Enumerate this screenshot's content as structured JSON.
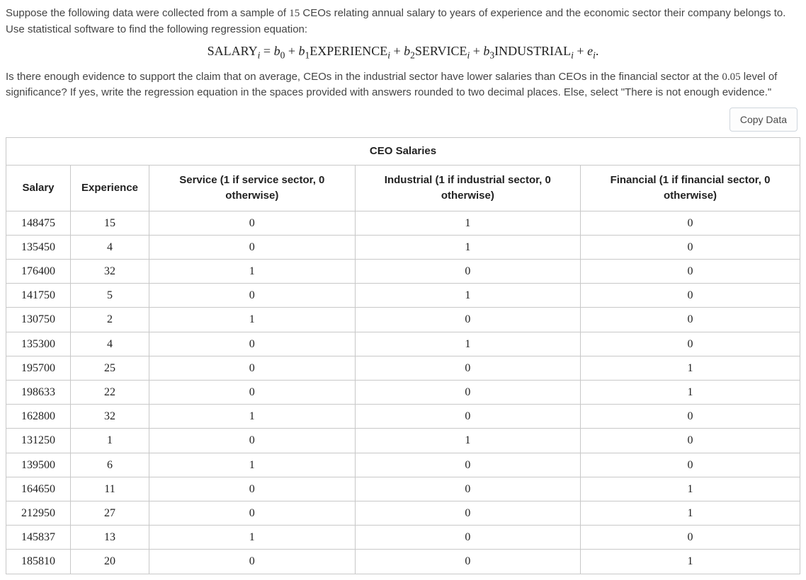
{
  "intro": {
    "p1_a": "Suppose the following data were collected from a sample of ",
    "p1_count": "15",
    "p1_b": " CEOs relating annual salary to years of experience and the economic sector their company belongs to. Use statistical software to find the following regression equation:",
    "p2_a": "Is there enough evidence to support the claim that on average, CEOs in the industrial sector have lower salaries than CEOs in the financial sector at the ",
    "p2_alpha": "0.05",
    "p2_b": " level of significance? If yes, write the regression equation in the spaces provided with answers rounded to two decimal places. Else, select \"There is not enough evidence.\""
  },
  "equation_html": "SALARY<sub><i>i</i></sub> = <i>b</i><sub>0</sub> + <i>b</i><sub>1</sub>EXPERIENCE<sub><i>i</i></sub> + <i>b</i><sub>2</sub>SERVICE<sub><i>i</i></sub> + <i>b</i><sub>3</sub>INDUSTRIAL<sub><i>i</i></sub> + <i>e</i><sub><i>i</i></sub>.",
  "buttons": {
    "copy": "Copy Data"
  },
  "table": {
    "title": "CEO Salaries",
    "columns": [
      "Salary",
      "Experience",
      "Service (1 if service sector, 0 otherwise)",
      "Industrial (1 if industrial sector, 0 otherwise)",
      "Financial (1 if financial sector, 0 otherwise)"
    ],
    "rows": [
      [
        "148475",
        "15",
        "0",
        "1",
        "0"
      ],
      [
        "135450",
        "4",
        "0",
        "1",
        "0"
      ],
      [
        "176400",
        "32",
        "1",
        "0",
        "0"
      ],
      [
        "141750",
        "5",
        "0",
        "1",
        "0"
      ],
      [
        "130750",
        "2",
        "1",
        "0",
        "0"
      ],
      [
        "135300",
        "4",
        "0",
        "1",
        "0"
      ],
      [
        "195700",
        "25",
        "0",
        "0",
        "1"
      ],
      [
        "198633",
        "22",
        "0",
        "0",
        "1"
      ],
      [
        "162800",
        "32",
        "1",
        "0",
        "0"
      ],
      [
        "131250",
        "1",
        "0",
        "1",
        "0"
      ],
      [
        "139500",
        "6",
        "1",
        "0",
        "0"
      ],
      [
        "164650",
        "11",
        "0",
        "0",
        "1"
      ],
      [
        "212950",
        "27",
        "0",
        "0",
        "1"
      ],
      [
        "145837",
        "13",
        "1",
        "0",
        "0"
      ],
      [
        "185810",
        "20",
        "0",
        "0",
        "1"
      ]
    ]
  }
}
